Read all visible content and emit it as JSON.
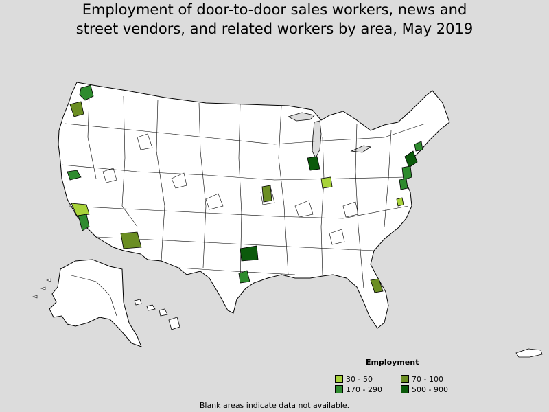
{
  "map": {
    "title_line1": "Employment of door-to-door sales workers, news and",
    "title_line2": "street vendors, and related workers by area, May 2019",
    "footnote": "Blank areas indicate data not available."
  },
  "legend": {
    "title": "Employment",
    "items": [
      {
        "label": "30 - 50",
        "color": "#a8d33a"
      },
      {
        "label": "70 - 100",
        "color": "#6b8e23"
      },
      {
        "label": "170 - 290",
        "color": "#2e8b2e"
      },
      {
        "label": "500 - 900",
        "color": "#0b5a0b"
      }
    ]
  },
  "colors": {
    "background": "#dcdcdc",
    "land": "#ffffff",
    "border": "#000000"
  }
}
